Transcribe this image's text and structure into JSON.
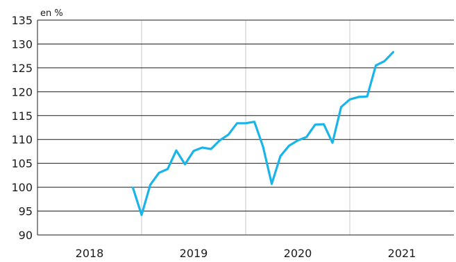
{
  "chart_data": {
    "type": "line",
    "title": "",
    "unit_label": "en %",
    "xlabel": "",
    "ylabel": "",
    "ylim": [
      90,
      135
    ],
    "yticks": [
      90,
      95,
      100,
      105,
      110,
      115,
      120,
      125,
      130,
      135
    ],
    "x_range": [
      2018.0,
      2022.0
    ],
    "year_labels": [
      "2018",
      "2019",
      "2020",
      "2021"
    ],
    "grid": "horizontal lines at each y tick; vertical separators between years",
    "legend": "none",
    "series": [
      {
        "color": "#1ab4e8",
        "points": [
          {
            "x": 2018.917,
            "y": 99.9
          },
          {
            "x": 2019.0,
            "y": 94.2
          },
          {
            "x": 2019.083,
            "y": 100.5
          },
          {
            "x": 2019.167,
            "y": 103.0
          },
          {
            "x": 2019.25,
            "y": 103.8
          },
          {
            "x": 2019.333,
            "y": 107.7
          },
          {
            "x": 2019.417,
            "y": 104.8
          },
          {
            "x": 2019.5,
            "y": 107.6
          },
          {
            "x": 2019.583,
            "y": 108.3
          },
          {
            "x": 2019.667,
            "y": 108.0
          },
          {
            "x": 2019.75,
            "y": 109.8
          },
          {
            "x": 2019.833,
            "y": 111.0
          },
          {
            "x": 2019.917,
            "y": 113.4
          },
          {
            "x": 2020.0,
            "y": 113.4
          },
          {
            "x": 2020.083,
            "y": 113.7
          },
          {
            "x": 2020.167,
            "y": 108.5
          },
          {
            "x": 2020.25,
            "y": 100.7
          },
          {
            "x": 2020.333,
            "y": 106.5
          },
          {
            "x": 2020.417,
            "y": 108.7
          },
          {
            "x": 2020.5,
            "y": 109.8
          },
          {
            "x": 2020.583,
            "y": 110.5
          },
          {
            "x": 2020.667,
            "y": 113.1
          },
          {
            "x": 2020.75,
            "y": 113.2
          },
          {
            "x": 2020.833,
            "y": 109.3
          },
          {
            "x": 2020.917,
            "y": 116.8
          },
          {
            "x": 2021.0,
            "y": 118.4
          },
          {
            "x": 2021.083,
            "y": 118.9
          },
          {
            "x": 2021.167,
            "y": 119.0
          },
          {
            "x": 2021.25,
            "y": 125.5
          },
          {
            "x": 2021.333,
            "y": 126.4
          },
          {
            "x": 2021.417,
            "y": 128.3
          }
        ]
      }
    ]
  }
}
